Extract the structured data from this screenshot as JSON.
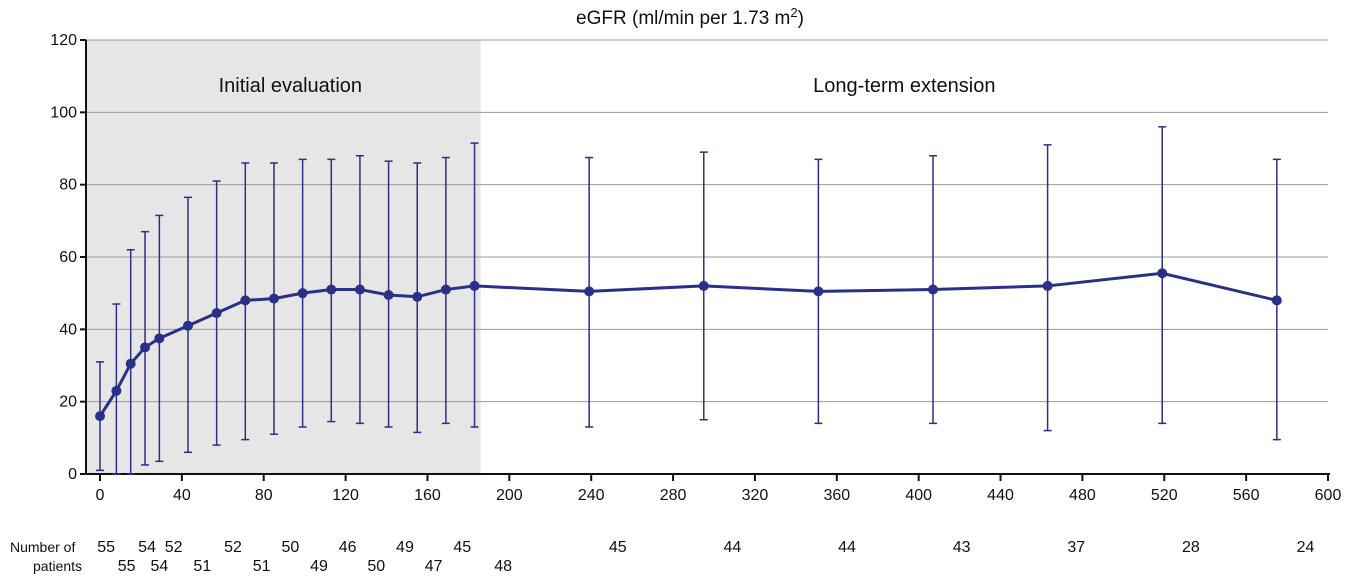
{
  "chart_data": {
    "type": "line",
    "title": "eGFR (ml/min per 1.73 m",
    "title_sup": "2",
    "title_close": ")",
    "xlim": [
      0,
      600
    ],
    "ylim": [
      0,
      120
    ],
    "x_ticks": [
      0,
      40,
      80,
      120,
      160,
      200,
      240,
      280,
      320,
      360,
      400,
      440,
      480,
      520,
      560,
      600
    ],
    "y_ticks": [
      0,
      20,
      40,
      60,
      80,
      100,
      120
    ],
    "grid": "horizontal",
    "color": "#2b3087",
    "regions": [
      {
        "label": "Initial evaluation",
        "x_start": 0,
        "x_end": 186,
        "shaded": true,
        "fill": "#e6e6e6"
      },
      {
        "label": "Long-term extension",
        "x_start": 186,
        "x_end": 600,
        "shaded": false
      }
    ],
    "points": [
      {
        "x": 0,
        "y": 16,
        "low": 1,
        "high": 31
      },
      {
        "x": 8,
        "y": 23,
        "low": 0,
        "high": 47
      },
      {
        "x": 15,
        "y": 30.5,
        "low": 0,
        "high": 62
      },
      {
        "x": 22,
        "y": 35,
        "low": 2.5,
        "high": 67
      },
      {
        "x": 29,
        "y": 37.5,
        "low": 3.5,
        "high": 71.5
      },
      {
        "x": 43,
        "y": 41,
        "low": 6,
        "high": 76.5
      },
      {
        "x": 57,
        "y": 44.5,
        "low": 8,
        "high": 81
      },
      {
        "x": 71,
        "y": 48,
        "low": 9.5,
        "high": 86
      },
      {
        "x": 85,
        "y": 48.5,
        "low": 11,
        "high": 86
      },
      {
        "x": 99,
        "y": 50,
        "low": 13,
        "high": 87
      },
      {
        "x": 113,
        "y": 51,
        "low": 14.5,
        "high": 87
      },
      {
        "x": 127,
        "y": 51,
        "low": 14,
        "high": 88
      },
      {
        "x": 141,
        "y": 49.5,
        "low": 13,
        "high": 86.5
      },
      {
        "x": 155,
        "y": 49,
        "low": 11.5,
        "high": 86
      },
      {
        "x": 169,
        "y": 51,
        "low": 14,
        "high": 87.5
      },
      {
        "x": 183,
        "y": 52,
        "low": 13,
        "high": 91.5
      },
      {
        "x": 239,
        "y": 50.5,
        "low": 13,
        "high": 87.5
      },
      {
        "x": 295,
        "y": 52,
        "low": 15,
        "high": 89
      },
      {
        "x": 351,
        "y": 50.5,
        "low": 14,
        "high": 87
      },
      {
        "x": 407,
        "y": 51,
        "low": 14,
        "high": 88
      },
      {
        "x": 463,
        "y": 52,
        "low": 12,
        "high": 91
      },
      {
        "x": 519,
        "y": 55.5,
        "low": 14,
        "high": 96
      },
      {
        "x": 575,
        "y": 48,
        "low": 9.5,
        "high": 87
      }
    ],
    "patients_label_line1": "Number of",
    "patients_label_line2": "patients",
    "patients_row1": [
      {
        "x": 3,
        "n": "55"
      },
      {
        "x": 23,
        "n": "54"
      },
      {
        "x": 36,
        "n": "52"
      },
      {
        "x": 65,
        "n": "52"
      },
      {
        "x": 93,
        "n": "50"
      },
      {
        "x": 121,
        "n": "46"
      },
      {
        "x": 149,
        "n": "49"
      },
      {
        "x": 177,
        "n": "45"
      },
      {
        "x": 253,
        "n": "45"
      },
      {
        "x": 309,
        "n": "44"
      },
      {
        "x": 365,
        "n": "44"
      },
      {
        "x": 421,
        "n": "43"
      },
      {
        "x": 477,
        "n": "37"
      },
      {
        "x": 533,
        "n": "28"
      },
      {
        "x": 589,
        "n": "24"
      }
    ],
    "patients_row2": [
      {
        "x": 13,
        "n": "55"
      },
      {
        "x": 29,
        "n": "54"
      },
      {
        "x": 50,
        "n": "51"
      },
      {
        "x": 79,
        "n": "51"
      },
      {
        "x": 107,
        "n": "49"
      },
      {
        "x": 135,
        "n": "50"
      },
      {
        "x": 163,
        "n": "47"
      },
      {
        "x": 197,
        "n": "48"
      }
    ]
  }
}
